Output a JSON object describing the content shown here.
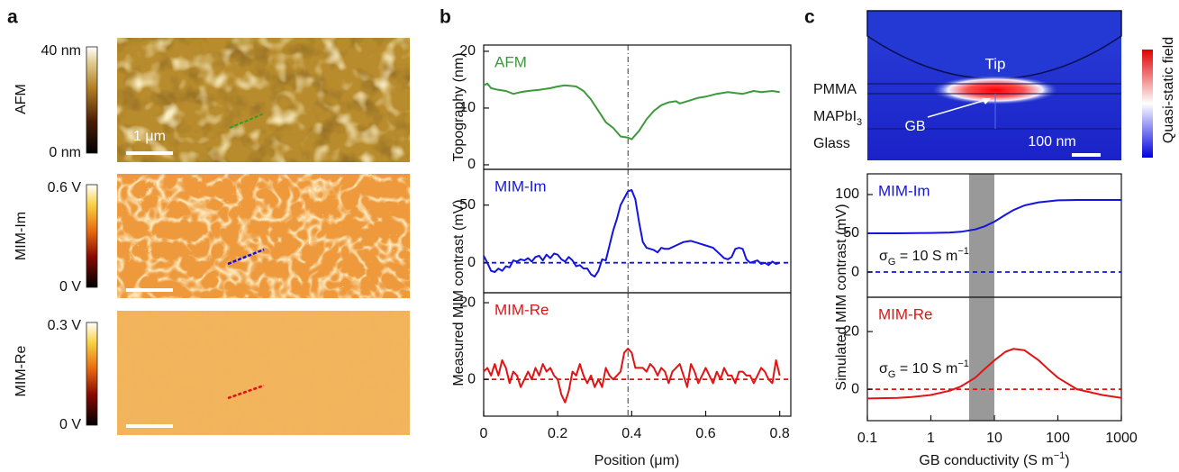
{
  "panel_labels": [
    "a",
    "b",
    "c"
  ],
  "panel_a": {
    "rows": [
      {
        "label": "AFM",
        "colorbar_max": "40 nm",
        "colorbar_min": "0 nm",
        "scale_bar": "1 μm"
      },
      {
        "label": "MIM-Im",
        "colorbar_max": "0.6 V",
        "colorbar_min": "0 V"
      },
      {
        "label": "MIM-Re",
        "colorbar_max": "0.3 V",
        "colorbar_min": "0 V"
      }
    ]
  },
  "panel_c_inset": {
    "tip": "Tip",
    "pmma": "PMMA",
    "mapbi": {
      "text": "MAPbI",
      "sub": "3"
    },
    "glass": "Glass",
    "gb": "GB",
    "scale_bar": "100 nm",
    "colorbar_label": "Quasi-static field"
  },
  "chart_data": [
    {
      "type": "line",
      "x": [
        0,
        0.01,
        0.02,
        0.04,
        0.06,
        0.08,
        0.1,
        0.12,
        0.15,
        0.18,
        0.2,
        0.22,
        0.25,
        0.27,
        0.29,
        0.31,
        0.33,
        0.35,
        0.37,
        0.39,
        0.4,
        0.42,
        0.44,
        0.46,
        0.48,
        0.5,
        0.52,
        0.53,
        0.55,
        0.58,
        0.6,
        0.63,
        0.66,
        0.7,
        0.73,
        0.75,
        0.78,
        0.8
      ],
      "series": [
        {
          "name": "AFM",
          "color": "#3c9a3c",
          "values": [
            14.0,
            14.3,
            13.5,
            13.2,
            13.0,
            12.5,
            12.8,
            13.0,
            13.2,
            13.5,
            13.8,
            14.0,
            13.8,
            13.0,
            11.5,
            9.5,
            7.5,
            6.5,
            5.0,
            4.8,
            4.5,
            6.0,
            8.0,
            9.5,
            10.5,
            11.0,
            11.2,
            10.8,
            11.2,
            11.8,
            12.0,
            12.5,
            12.8,
            12.5,
            13.0,
            12.8,
            13.0,
            12.8
          ]
        }
      ],
      "xlim": [
        0,
        0.83
      ],
      "ylim": [
        -0.8,
        21.1
      ],
      "yticks": [
        0,
        10,
        20
      ],
      "ylabel": "Topography (nm)",
      "vline": 0.39
    },
    {
      "type": "line",
      "x": [
        0,
        0.01,
        0.02,
        0.03,
        0.04,
        0.05,
        0.06,
        0.07,
        0.08,
        0.09,
        0.1,
        0.11,
        0.12,
        0.13,
        0.14,
        0.15,
        0.16,
        0.17,
        0.18,
        0.19,
        0.2,
        0.21,
        0.22,
        0.23,
        0.24,
        0.25,
        0.26,
        0.27,
        0.28,
        0.29,
        0.3,
        0.31,
        0.32,
        0.33,
        0.34,
        0.35,
        0.36,
        0.37,
        0.38,
        0.39,
        0.4,
        0.41,
        0.42,
        0.43,
        0.44,
        0.45,
        0.46,
        0.47,
        0.48,
        0.49,
        0.5,
        0.52,
        0.54,
        0.56,
        0.58,
        0.6,
        0.62,
        0.64,
        0.65,
        0.66,
        0.67,
        0.68,
        0.69,
        0.7,
        0.71,
        0.72,
        0.73,
        0.74,
        0.75,
        0.76,
        0.77,
        0.78,
        0.79,
        0.8
      ],
      "series": [
        {
          "name": "MIM-Im",
          "color": "#1414e0",
          "values": [
            6,
            0,
            -7,
            -8,
            -5,
            -7,
            -3,
            -4,
            2,
            1,
            3,
            2,
            4,
            1,
            5,
            6,
            2,
            7,
            4,
            8,
            7,
            3,
            1,
            5,
            2,
            -3,
            -2,
            -5,
            -5,
            -10,
            -12,
            -7,
            3,
            2,
            15,
            28,
            38,
            50,
            56,
            62,
            63,
            55,
            35,
            18,
            13,
            12,
            11,
            9,
            13,
            12,
            12,
            15,
            18,
            19,
            17,
            15,
            13,
            7,
            4,
            3,
            5,
            12,
            13,
            12,
            3,
            0,
            1,
            2,
            -1,
            0,
            -2,
            1,
            -1,
            0
          ]
        }
      ],
      "xlim": [
        0,
        0.83
      ],
      "ylim": [
        -26,
        81
      ],
      "yticks": [
        0,
        50
      ],
      "ylabel": "Measured MIM contrast (mV)",
      "baseline": 0,
      "vline": 0.39
    },
    {
      "type": "line",
      "x": [
        0,
        0.01,
        0.02,
        0.03,
        0.04,
        0.05,
        0.06,
        0.07,
        0.08,
        0.09,
        0.1,
        0.11,
        0.12,
        0.13,
        0.14,
        0.15,
        0.16,
        0.17,
        0.18,
        0.19,
        0.2,
        0.21,
        0.22,
        0.23,
        0.24,
        0.25,
        0.26,
        0.27,
        0.28,
        0.29,
        0.3,
        0.31,
        0.32,
        0.33,
        0.34,
        0.35,
        0.36,
        0.37,
        0.38,
        0.39,
        0.4,
        0.41,
        0.42,
        0.43,
        0.44,
        0.45,
        0.46,
        0.47,
        0.48,
        0.49,
        0.5,
        0.51,
        0.52,
        0.53,
        0.54,
        0.55,
        0.56,
        0.57,
        0.58,
        0.59,
        0.6,
        0.61,
        0.62,
        0.63,
        0.64,
        0.65,
        0.66,
        0.67,
        0.68,
        0.69,
        0.7,
        0.71,
        0.72,
        0.73,
        0.74,
        0.75,
        0.76,
        0.77,
        0.78,
        0.79,
        0.8
      ],
      "series": [
        {
          "name": "MIM-Re",
          "color": "#e01414",
          "values": [
            2,
            3,
            1,
            4,
            1,
            5,
            3,
            -1,
            2,
            1,
            -2,
            0,
            2,
            0,
            3,
            1,
            4,
            2,
            3,
            1,
            0,
            -4,
            -6,
            -3,
            2,
            1,
            4,
            1,
            -1,
            1,
            -2,
            0,
            -2,
            3,
            1,
            0,
            1,
            2,
            7,
            8,
            7,
            3,
            3,
            3,
            2,
            4,
            3,
            1,
            3,
            2,
            -1,
            2,
            3,
            4,
            1,
            -2,
            4,
            2,
            -1,
            1,
            3,
            1,
            -1,
            2,
            0,
            3,
            1,
            1,
            -1,
            2,
            2,
            1,
            1,
            -1,
            1,
            3,
            2,
            0,
            -1,
            5,
            1
          ]
        }
      ],
      "xlim": [
        0,
        0.83
      ],
      "ylim": [
        -9.6,
        22.6
      ],
      "yticks": [
        0,
        20
      ],
      "xticks": [
        0,
        0.2,
        0.4,
        0.6,
        0.8
      ],
      "xlabel": "Position (μm)",
      "baseline": 0,
      "vline": 0.39
    },
    {
      "type": "line",
      "xscale": "log",
      "x": [
        0.1,
        0.3,
        1,
        2,
        3,
        5,
        7,
        10,
        15,
        20,
        30,
        50,
        100,
        200,
        1000
      ],
      "series": [
        {
          "name": "MIM-Im",
          "color": "#1414e0",
          "values": [
            50,
            50,
            50.5,
            51,
            52,
            55,
            59,
            65,
            74,
            80,
            86,
            90,
            92.5,
            93,
            93
          ]
        }
      ],
      "xlim": [
        0.1,
        1000
      ],
      "ylim": [
        -32.5,
        126.7
      ],
      "yticks": [
        0,
        50,
        100
      ],
      "ylabel": "Simulated MIM contrast (mV)",
      "baseline": 0,
      "band": [
        4,
        10
      ],
      "annotation": {
        "text": "σ",
        "sub": "G",
        "mid": " = 10 S m",
        "sup": "−1"
      }
    },
    {
      "type": "line",
      "xscale": "log",
      "x": [
        0.1,
        0.3,
        0.5,
        1,
        2,
        3,
        5,
        7,
        10,
        15,
        20,
        30,
        50,
        70,
        100,
        200,
        500,
        1000
      ],
      "series": [
        {
          "name": "MIM-Re",
          "color": "#e01414",
          "values": [
            -3.2,
            -3,
            -2.7,
            -2,
            -0.5,
            1,
            4,
            7,
            10,
            13,
            14,
            13.5,
            10,
            7,
            4,
            0,
            -2,
            -3
          ]
        }
      ],
      "xlim": [
        0.1,
        1000
      ],
      "ylim": [
        -10.9,
        31.9
      ],
      "yticks": [
        0,
        20
      ],
      "xticks": [
        0.1,
        1,
        10,
        100,
        1000
      ],
      "xlabel": {
        "text": "GB conductivity (S m",
        "sup": "−1",
        "end": ")"
      },
      "baseline": 0,
      "band": [
        4,
        10
      ],
      "annotation": {
        "text": "σ",
        "sub": "G",
        "mid": " = 10 S m",
        "sup": "−1"
      }
    }
  ]
}
